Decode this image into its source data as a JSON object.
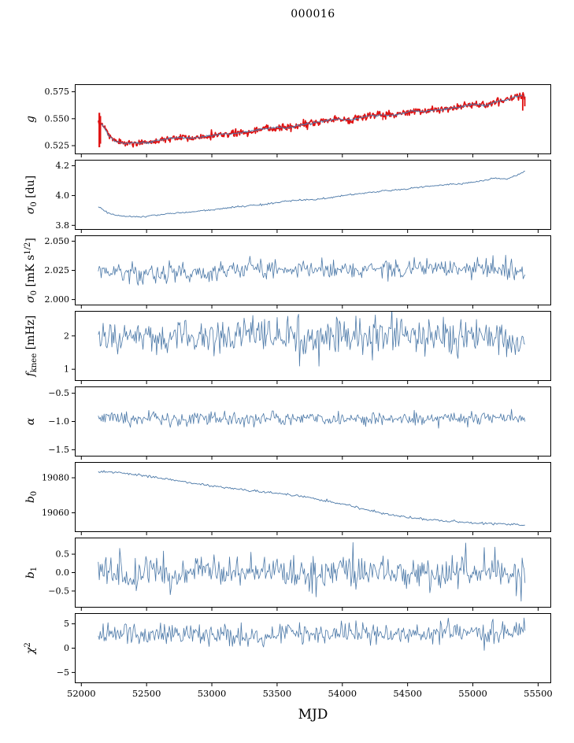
{
  "title": "000016",
  "colors": {
    "blue": "#4c79a8",
    "red": "#e01212",
    "frame": "#000000",
    "text": "#000000"
  },
  "x_axis": {
    "label": "MJD",
    "lim": [
      51950,
      55600
    ],
    "ticks": [
      {
        "v": 52000,
        "l": "52000"
      },
      {
        "v": 52500,
        "l": "52500"
      },
      {
        "v": 53000,
        "l": "53000"
      },
      {
        "v": 53500,
        "l": "53500"
      },
      {
        "v": 54000,
        "l": "54000"
      },
      {
        "v": 54500,
        "l": "54500"
      },
      {
        "v": 55000,
        "l": "55000"
      },
      {
        "v": 55500,
        "l": "55500"
      }
    ]
  },
  "chart_data": [
    {
      "id": "g",
      "type": "line",
      "ylabel_parts": [
        {
          "t": "g",
          "i": true
        }
      ],
      "ylim": [
        0.517,
        0.582
      ],
      "yticks": [
        {
          "v": 0.525,
          "l": "0.525"
        },
        {
          "v": 0.55,
          "l": "0.550"
        },
        {
          "v": 0.575,
          "l": "0.575"
        }
      ],
      "series": [
        {
          "name": "g-data-red",
          "color": "red",
          "width": 1.7,
          "n": 650,
          "sigma": 0.0016,
          "seed": 5,
          "anchors": [
            [
              52130,
              0.548
            ],
            [
              52170,
              0.543
            ],
            [
              52210,
              0.534
            ],
            [
              52260,
              0.529
            ],
            [
              52330,
              0.5272
            ],
            [
              52420,
              0.5272
            ],
            [
              52520,
              0.528
            ],
            [
              52620,
              0.5308
            ],
            [
              52700,
              0.532
            ],
            [
              52780,
              0.5325
            ],
            [
              52860,
              0.532
            ],
            [
              52940,
              0.5335
            ],
            [
              53020,
              0.535
            ],
            [
              53100,
              0.5358
            ],
            [
              53180,
              0.536
            ],
            [
              53260,
              0.5378
            ],
            [
              53340,
              0.5395
            ],
            [
              53420,
              0.541
            ],
            [
              53500,
              0.542
            ],
            [
              53580,
              0.5415
            ],
            [
              53660,
              0.5438
            ],
            [
              53740,
              0.5455
            ],
            [
              53820,
              0.547
            ],
            [
              53900,
              0.5488
            ],
            [
              53980,
              0.5495
            ],
            [
              54060,
              0.549
            ],
            [
              54140,
              0.551
            ],
            [
              54220,
              0.5528
            ],
            [
              54300,
              0.5535
            ],
            [
              54380,
              0.553
            ],
            [
              54460,
              0.5548
            ],
            [
              54540,
              0.5572
            ],
            [
              54620,
              0.5568
            ],
            [
              54700,
              0.558
            ],
            [
              54780,
              0.559
            ],
            [
              54860,
              0.5602
            ],
            [
              54940,
              0.562
            ],
            [
              55020,
              0.5635
            ],
            [
              55100,
              0.562
            ],
            [
              55180,
              0.566
            ],
            [
              55260,
              0.567
            ],
            [
              55320,
              0.5705
            ],
            [
              55370,
              0.5712
            ],
            [
              55400,
              0.5698
            ]
          ]
        },
        {
          "name": "g-fit-blue",
          "color": "blue",
          "width": 0.9,
          "n": 650,
          "sigma": 0.0005,
          "seed": 9,
          "anchors": [
            [
              52130,
              0.548
            ],
            [
              52170,
              0.543
            ],
            [
              52210,
              0.534
            ],
            [
              52260,
              0.529
            ],
            [
              52330,
              0.5272
            ],
            [
              52420,
              0.5272
            ],
            [
              52520,
              0.528
            ],
            [
              52620,
              0.5308
            ],
            [
              52700,
              0.532
            ],
            [
              52780,
              0.5325
            ],
            [
              52860,
              0.532
            ],
            [
              52940,
              0.5335
            ],
            [
              53020,
              0.535
            ],
            [
              53100,
              0.5358
            ],
            [
              53180,
              0.536
            ],
            [
              53260,
              0.5378
            ],
            [
              53340,
              0.5395
            ],
            [
              53420,
              0.541
            ],
            [
              53500,
              0.542
            ],
            [
              53580,
              0.5415
            ],
            [
              53660,
              0.5438
            ],
            [
              53740,
              0.5455
            ],
            [
              53820,
              0.547
            ],
            [
              53900,
              0.5488
            ],
            [
              53980,
              0.5495
            ],
            [
              54060,
              0.549
            ],
            [
              54140,
              0.551
            ],
            [
              54220,
              0.5528
            ],
            [
              54300,
              0.5535
            ],
            [
              54380,
              0.553
            ],
            [
              54460,
              0.5548
            ],
            [
              54540,
              0.5572
            ],
            [
              54620,
              0.5568
            ],
            [
              54700,
              0.558
            ],
            [
              54780,
              0.559
            ],
            [
              54860,
              0.5602
            ],
            [
              54940,
              0.562
            ],
            [
              55020,
              0.5635
            ],
            [
              55100,
              0.562
            ],
            [
              55180,
              0.566
            ],
            [
              55260,
              0.567
            ],
            [
              55320,
              0.5705
            ],
            [
              55370,
              0.5712
            ],
            [
              55400,
              0.5698
            ]
          ]
        }
      ],
      "vlines": [
        {
          "x": 52138,
          "y1": 0.5235,
          "y2": 0.5555,
          "color": "red",
          "width": 2.2
        },
        {
          "x": 52146,
          "y1": 0.5268,
          "y2": 0.5525,
          "color": "red",
          "width": 2.0
        },
        {
          "x": 54310,
          "y1": 0.5487,
          "y2": 0.5535,
          "color": "red",
          "width": 1.4
        },
        {
          "x": 55382,
          "y1": 0.5575,
          "y2": 0.5712,
          "color": "red",
          "width": 1.8
        },
        {
          "x": 55398,
          "y1": 0.5615,
          "y2": 0.5705,
          "color": "red",
          "width": 1.8
        }
      ]
    },
    {
      "id": "sigma0-du",
      "type": "line",
      "ylabel_parts": [
        {
          "t": "σ",
          "i": true
        },
        {
          "sub": "0"
        },
        {
          "t": " [du]"
        }
      ],
      "ylim": [
        3.77,
        4.24
      ],
      "yticks": [
        {
          "v": 3.8,
          "l": "3.8"
        },
        {
          "v": 4.0,
          "l": "4.0"
        },
        {
          "v": 4.2,
          "l": "4.2"
        }
      ],
      "series": [
        {
          "name": "sigma0-du-line",
          "color": "blue",
          "width": 0.9,
          "n": 380,
          "sigma": 0.003,
          "seed": 21,
          "anchors": [
            [
              52130,
              3.928
            ],
            [
              52200,
              3.885
            ],
            [
              52300,
              3.862
            ],
            [
              52400,
              3.855
            ],
            [
              52500,
              3.861
            ],
            [
              52600,
              3.872
            ],
            [
              52700,
              3.881
            ],
            [
              52800,
              3.887
            ],
            [
              52900,
              3.895
            ],
            [
              53000,
              3.905
            ],
            [
              53100,
              3.914
            ],
            [
              53200,
              3.924
            ],
            [
              53300,
              3.934
            ],
            [
              53400,
              3.94
            ],
            [
              53500,
              3.954
            ],
            [
              53600,
              3.964
            ],
            [
              53700,
              3.969
            ],
            [
              53800,
              3.975
            ],
            [
              53900,
              3.985
            ],
            [
              54000,
              4.0
            ],
            [
              54100,
              4.01
            ],
            [
              54200,
              4.019
            ],
            [
              54300,
              4.029
            ],
            [
              54400,
              4.039
            ],
            [
              54500,
              4.045
            ],
            [
              54600,
              4.058
            ],
            [
              54700,
              4.064
            ],
            [
              54800,
              4.074
            ],
            [
              54900,
              4.079
            ],
            [
              55000,
              4.089
            ],
            [
              55100,
              4.103
            ],
            [
              55150,
              4.118
            ],
            [
              55200,
              4.114
            ],
            [
              55250,
              4.109
            ],
            [
              55300,
              4.124
            ],
            [
              55350,
              4.139
            ],
            [
              55400,
              4.168
            ]
          ]
        }
      ]
    },
    {
      "id": "sigma0-mks",
      "type": "line",
      "ylabel_parts": [
        {
          "t": "σ",
          "i": true
        },
        {
          "sub": "0"
        },
        {
          "t": " [mK s"
        },
        {
          "sup": "1/2"
        },
        {
          "t": "]"
        }
      ],
      "ylim": [
        1.995,
        2.055
      ],
      "yticks": [
        {
          "v": 2.0,
          "l": "2.000"
        },
        {
          "v": 2.025,
          "l": "2.025"
        },
        {
          "v": 2.05,
          "l": "2.050"
        }
      ],
      "series": [
        {
          "name": "sigma0-mks-line",
          "color": "blue",
          "width": 0.8,
          "n": 440,
          "sigma": 0.0042,
          "seed": 33,
          "anchors": [
            [
              52130,
              2.0245
            ],
            [
              52500,
              2.0215
            ],
            [
              52900,
              2.0235
            ],
            [
              53300,
              2.0255
            ],
            [
              53700,
              2.0265
            ],
            [
              54100,
              2.026
            ],
            [
              54500,
              2.0265
            ],
            [
              54900,
              2.0265
            ],
            [
              55200,
              2.0255
            ],
            [
              55350,
              2.023
            ],
            [
              55400,
              2.0185
            ]
          ]
        }
      ]
    },
    {
      "id": "fknee",
      "type": "line",
      "ylabel_parts": [
        {
          "t": "f",
          "i": true
        },
        {
          "sub": "knee"
        },
        {
          "t": " [mHz]"
        }
      ],
      "ylim": [
        0.65,
        2.75
      ],
      "yticks": [
        {
          "v": 1,
          "l": "1"
        },
        {
          "v": 2,
          "l": "2"
        }
      ],
      "series": [
        {
          "name": "fknee-line",
          "color": "blue",
          "width": 0.8,
          "n": 440,
          "sigma": 0.27,
          "seed": 44,
          "anchors": [
            [
              52130,
              1.95
            ],
            [
              55400,
              1.96
            ]
          ]
        }
      ]
    },
    {
      "id": "alpha",
      "type": "line",
      "ylabel_parts": [
        {
          "t": "α",
          "i": true
        }
      ],
      "ylim": [
        -1.62,
        -0.38
      ],
      "yticks": [
        {
          "v": -1.5,
          "l": "−1.5"
        },
        {
          "v": -1.0,
          "l": "−1.0"
        },
        {
          "v": -0.5,
          "l": "−0.5"
        }
      ],
      "series": [
        {
          "name": "alpha-line",
          "color": "blue",
          "width": 0.8,
          "n": 440,
          "sigma": 0.062,
          "seed": 55,
          "anchors": [
            [
              52130,
              -0.955
            ],
            [
              55400,
              -0.945
            ]
          ]
        }
      ]
    },
    {
      "id": "b0",
      "type": "line",
      "ylabel_parts": [
        {
          "t": "b",
          "i": true
        },
        {
          "sub": "0"
        }
      ],
      "ylim": [
        19049,
        19089
      ],
      "yticks": [
        {
          "v": 19060,
          "l": "19060"
        },
        {
          "v": 19080,
          "l": "19080"
        }
      ],
      "series": [
        {
          "name": "b0-line",
          "color": "blue",
          "width": 0.9,
          "n": 380,
          "sigma": 0.3,
          "seed": 66,
          "anchors": [
            [
              52130,
              19083
            ],
            [
              52250,
              19083.3
            ],
            [
              52400,
              19082
            ],
            [
              52600,
              19080
            ],
            [
              52800,
              19077.5
            ],
            [
              53000,
              19075.5
            ],
            [
              53200,
              19073.5
            ],
            [
              53350,
              19072.3
            ],
            [
              53500,
              19071
            ],
            [
              53600,
              19070.4
            ],
            [
              53700,
              19069.3
            ],
            [
              53800,
              19068
            ],
            [
              53900,
              19066.5
            ],
            [
              54000,
              19065
            ],
            [
              54100,
              19063.4
            ],
            [
              54200,
              19061.4
            ],
            [
              54300,
              19059.9
            ],
            [
              54400,
              19058.4
            ],
            [
              54500,
              19057.4
            ],
            [
              54700,
              19055.8
            ],
            [
              54900,
              19054.8
            ],
            [
              55100,
              19054
            ],
            [
              55300,
              19053.4
            ],
            [
              55400,
              19053
            ]
          ]
        }
      ]
    },
    {
      "id": "b1",
      "type": "line",
      "ylabel_parts": [
        {
          "t": "b",
          "i": true
        },
        {
          "sub": "1"
        }
      ],
      "ylim": [
        -0.95,
        0.95
      ],
      "yticks": [
        {
          "v": -0.5,
          "l": "−0.5"
        },
        {
          "v": 0.0,
          "l": "0.0"
        },
        {
          "v": 0.5,
          "l": "0.5"
        }
      ],
      "series": [
        {
          "name": "b1-line",
          "color": "blue",
          "width": 0.8,
          "n": 440,
          "sigma": 0.23,
          "seed": 77,
          "anchors": [
            [
              52130,
              0.0
            ],
            [
              55400,
              0.0
            ]
          ]
        }
      ]
    },
    {
      "id": "chi2",
      "type": "line",
      "ylabel_parts": [
        {
          "t": "χ",
          "i": true
        },
        {
          "sup": "2"
        }
      ],
      "ylim": [
        -7.2,
        7.2
      ],
      "yticks": [
        {
          "v": -5,
          "l": "−5"
        },
        {
          "v": 0,
          "l": "0"
        },
        {
          "v": 5,
          "l": "5"
        }
      ],
      "series": [
        {
          "name": "chi2-line",
          "color": "blue",
          "width": 0.8,
          "n": 440,
          "sigma": 1.1,
          "seed": 88,
          "anchors": [
            [
              52130,
              2.8
            ],
            [
              52400,
              3.2
            ],
            [
              52700,
              2.6
            ],
            [
              53000,
              3.2
            ],
            [
              53300,
              2.6
            ],
            [
              53600,
              3.3
            ],
            [
              53900,
              2.7
            ],
            [
              54200,
              3.3
            ],
            [
              54500,
              2.8
            ],
            [
              54800,
              3.3
            ],
            [
              55100,
              2.9
            ],
            [
              55400,
              3.3
            ]
          ]
        }
      ]
    }
  ]
}
